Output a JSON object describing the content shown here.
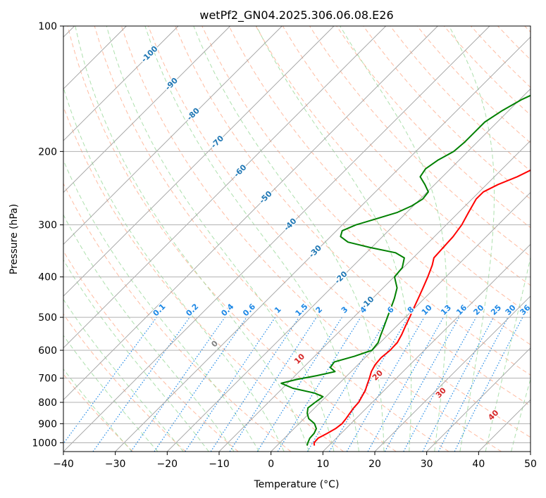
{
  "chart_data": {
    "type": "line",
    "title": "wetPf2_GN04.2025.306.06.08.E26",
    "xlabel": "Temperature (°C)",
    "ylabel": "Pressure (hPa)",
    "xlim": [
      -40,
      50
    ],
    "ylim": [
      1050,
      100
    ],
    "y_scale": "log",
    "grid": true,
    "x_ticks": [
      -40,
      -30,
      -20,
      -10,
      0,
      10,
      20,
      30,
      40,
      50
    ],
    "y_ticks": [
      100,
      200,
      300,
      400,
      500,
      600,
      700,
      800,
      900,
      1000
    ],
    "series": [
      {
        "color": "#ff0000",
        "points": [
          [
            1016,
            7.2
          ],
          [
            1000,
            6.6
          ],
          [
            975,
            6.5
          ],
          [
            950,
            7.3
          ],
          [
            925,
            8.0
          ],
          [
            900,
            8.3
          ],
          [
            875,
            8.1
          ],
          [
            850,
            7.8
          ],
          [
            825,
            7.5
          ],
          [
            800,
            7.4
          ],
          [
            775,
            6.9
          ],
          [
            750,
            6.4
          ],
          [
            725,
            5.6
          ],
          [
            700,
            4.8
          ],
          [
            675,
            3.9
          ],
          [
            650,
            3.3
          ],
          [
            625,
            3.1
          ],
          [
            600,
            3.4
          ],
          [
            575,
            3.3
          ],
          [
            550,
            2.6
          ],
          [
            525,
            1.7
          ],
          [
            500,
            0.8
          ],
          [
            475,
            -0.2
          ],
          [
            450,
            -1.2
          ],
          [
            425,
            -2.3
          ],
          [
            400,
            -3.5
          ],
          [
            375,
            -4.9
          ],
          [
            360,
            -6.0
          ],
          [
            340,
            -6.2
          ],
          [
            320,
            -6.4
          ],
          [
            300,
            -7.0
          ],
          [
            280,
            -8.1
          ],
          [
            260,
            -9.2
          ],
          [
            250,
            -9.2
          ],
          [
            240,
            -7.8
          ],
          [
            230,
            -5.6
          ],
          [
            220,
            -4.0
          ],
          [
            210,
            -2.7
          ],
          [
            200,
            -1.3
          ],
          [
            190,
            0.6
          ],
          [
            180,
            2.6
          ],
          [
            170,
            4.4
          ],
          [
            160,
            5.4
          ],
          [
            150,
            6.5
          ],
          [
            140,
            8.8
          ],
          [
            130,
            11.1
          ],
          [
            125,
            11.9
          ],
          [
            120,
            12.9
          ],
          [
            115,
            14.0
          ],
          [
            110,
            15.0
          ],
          [
            100,
            16.8
          ]
        ]
      },
      {
        "color": "#008000",
        "points": [
          [
            1016,
            5.8
          ],
          [
            1000,
            5.4
          ],
          [
            975,
            4.9
          ],
          [
            950,
            4.8
          ],
          [
            925,
            4.3
          ],
          [
            900,
            3.0
          ],
          [
            875,
            0.9
          ],
          [
            850,
            -0.4
          ],
          [
            825,
            -1.3
          ],
          [
            800,
            -1.0
          ],
          [
            775,
            -0.6
          ],
          [
            760,
            -2.9
          ],
          [
            740,
            -8.0
          ],
          [
            720,
            -11.2
          ],
          [
            705,
            -9.0
          ],
          [
            690,
            -5.8
          ],
          [
            675,
            -3.1
          ],
          [
            660,
            -4.8
          ],
          [
            640,
            -5.1
          ],
          [
            620,
            -2.3
          ],
          [
            600,
            -0.1
          ],
          [
            575,
            -0.4
          ],
          [
            550,
            -1.4
          ],
          [
            525,
            -2.4
          ],
          [
            500,
            -3.5
          ],
          [
            475,
            -4.6
          ],
          [
            450,
            -5.8
          ],
          [
            425,
            -7.3
          ],
          [
            400,
            -9.9
          ],
          [
            380,
            -10.2
          ],
          [
            360,
            -11.7
          ],
          [
            350,
            -14.4
          ],
          [
            340,
            -20.3
          ],
          [
            330,
            -25.6
          ],
          [
            320,
            -28.1
          ],
          [
            310,
            -28.9
          ],
          [
            300,
            -27.4
          ],
          [
            290,
            -24.6
          ],
          [
            280,
            -21.8
          ],
          [
            270,
            -20.3
          ],
          [
            260,
            -19.5
          ],
          [
            250,
            -19.8
          ],
          [
            240,
            -21.9
          ],
          [
            230,
            -24.3
          ],
          [
            220,
            -24.8
          ],
          [
            210,
            -24.1
          ],
          [
            200,
            -22.7
          ],
          [
            190,
            -22.4
          ],
          [
            180,
            -22.4
          ],
          [
            170,
            -22.4
          ],
          [
            160,
            -21.3
          ],
          [
            150,
            -19.6
          ],
          [
            140,
            -16.8
          ],
          [
            130,
            -13.7
          ],
          [
            120,
            -10.5
          ],
          [
            110,
            -7.5
          ],
          [
            100,
            -5.4
          ]
        ]
      }
    ],
    "annotations": {
      "dry_adiabat_labels": [
        {
          "text": "-100",
          "p": 117
        },
        {
          "text": "-90",
          "p": 138
        },
        {
          "text": "-80",
          "p": 163
        },
        {
          "text": "-70",
          "p": 190
        },
        {
          "text": "-60",
          "p": 223
        },
        {
          "text": "-50",
          "p": 258
        },
        {
          "text": "-40",
          "p": 300
        },
        {
          "text": "-30",
          "p": 348
        },
        {
          "text": "-20",
          "p": 402
        },
        {
          "text": "-10",
          "p": 462
        }
      ],
      "moist_adiabat_labels": [
        {
          "text": "0",
          "t": 0
        },
        {
          "text": "10",
          "t": 10
        },
        {
          "text": "20",
          "t": 20
        },
        {
          "text": "30",
          "t": 30
        },
        {
          "text": "40",
          "t": 40
        }
      ],
      "mixing_ratio_labels": [
        "0.1",
        "0.2",
        "0.4",
        "0.6",
        "1",
        "1.5",
        "2",
        "3",
        "4",
        "6",
        "8",
        "10",
        "13",
        "16",
        "20",
        "25",
        "30",
        "36"
      ]
    },
    "colors": {
      "grid": "#b0b0b0",
      "isotherm": "#a0a0a0",
      "dry_adiabat": "#ffa07a",
      "moist_adiabat": "#98d898",
      "mixing_ratio": "#1e88e5",
      "dry_label": "#1f77b4",
      "moist_label": "#d62728",
      "moist_zero_label": "#808080"
    }
  }
}
